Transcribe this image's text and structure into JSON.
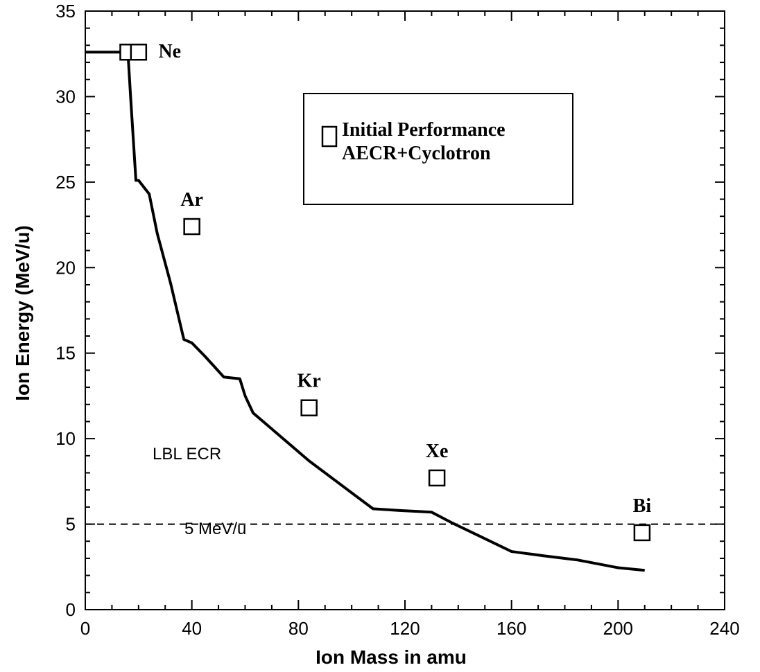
{
  "chart_data": {
    "type": "line",
    "xlabel": "Ion Mass in amu",
    "ylabel": "Ion Energy  (MeV/u)",
    "xlim": [
      0,
      240
    ],
    "ylim": [
      0,
      35
    ],
    "xticks": [
      0,
      40,
      80,
      120,
      160,
      200,
      240
    ],
    "yticks": [
      0,
      5,
      10,
      15,
      20,
      25,
      30,
      35
    ],
    "grid": false,
    "legend": {
      "position": "top-right",
      "line1": "Initial Performance",
      "line2": "AECR+Cyclotron"
    },
    "curve": {
      "label": "LBL ECR",
      "x": [
        0,
        16,
        17,
        19,
        20,
        22,
        24,
        27,
        32,
        37,
        40,
        45,
        52,
        58,
        60,
        63,
        72,
        84,
        96,
        108,
        118,
        130,
        138,
        148,
        160,
        172,
        185,
        200,
        210
      ],
      "y": [
        32.6,
        32.6,
        30,
        25.1,
        25.1,
        24.7,
        24.3,
        22,
        19.1,
        15.8,
        15.6,
        14.8,
        13.6,
        13.5,
        12.5,
        11.5,
        10.3,
        8.7,
        7.3,
        5.9,
        5.8,
        5.7,
        5.05,
        4.3,
        3.4,
        3.15,
        2.9,
        2.45,
        2.3
      ]
    },
    "reference_line": {
      "y": 5,
      "label": "5 MeV/u",
      "style": "dashed"
    },
    "points": [
      {
        "label": "Ne",
        "x": 16,
        "y": 32.6
      },
      {
        "label": "",
        "x": 20,
        "y": 32.6
      },
      {
        "label": "Ar",
        "x": 40,
        "y": 22.4
      },
      {
        "label": "Kr",
        "x": 84,
        "y": 11.8
      },
      {
        "label": "Xe",
        "x": 132,
        "y": 7.7
      },
      {
        "label": "Bi",
        "x": 209,
        "y": 4.5
      }
    ]
  }
}
